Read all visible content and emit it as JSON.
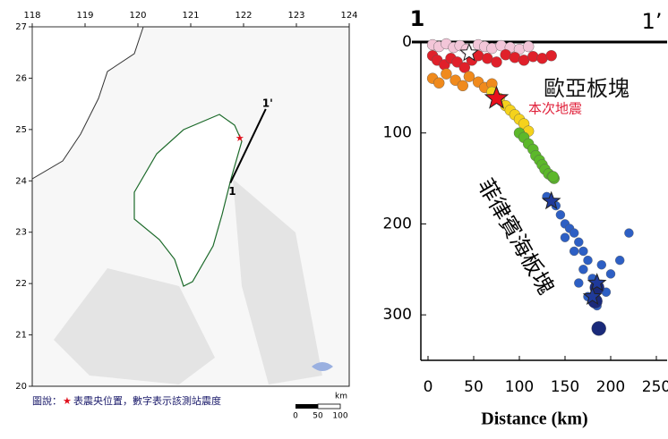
{
  "map": {
    "lon_ticks": [
      118,
      119,
      120,
      121,
      122,
      123,
      124
    ],
    "lat_ticks": [
      20,
      21,
      22,
      23,
      24,
      25,
      26,
      27
    ],
    "lonlim": [
      118,
      124
    ],
    "latlim": [
      20,
      27
    ],
    "epicenter": {
      "lon": 121.93,
      "lat": 24.82,
      "symbol": "★"
    },
    "profile": {
      "start": {
        "lon": 121.75,
        "lat": 23.96,
        "label": "1"
      },
      "end": {
        "lon": 122.42,
        "lat": 25.4,
        "label": "1'"
      }
    },
    "caption": {
      "prefix": "圖說：",
      "star": "★",
      "text": "表震央位置，數字表示該測站震度"
    },
    "scale": {
      "unit": "km",
      "labels": [
        "0",
        "50",
        "100"
      ]
    }
  },
  "chart_data": {
    "type": "scatter",
    "xlabel": "Distance (km)",
    "xlim": [
      0,
      250
    ],
    "ylim": [
      0,
      350
    ],
    "xticks": [
      0,
      50,
      100,
      150,
      200,
      250
    ],
    "yticks": [
      0,
      100,
      200,
      300
    ],
    "y_inverted": true,
    "annotations": {
      "left_end": "1",
      "right_end": "1’",
      "upper_plate": "歐亞板塊",
      "event": "本次地震",
      "lower_plate": "菲律賓海板塊"
    },
    "series": [
      {
        "color": "#f3c6d8",
        "size": 6,
        "x": [
          5,
          12,
          20,
          28,
          35,
          42,
          55,
          62,
          70,
          80,
          90,
          100,
          110
        ],
        "y": [
          3,
          5,
          2,
          6,
          4,
          8,
          3,
          5,
          7,
          4,
          6,
          8,
          5
        ]
      },
      {
        "color": "#e0202a",
        "size": 6,
        "x": [
          5,
          10,
          18,
          25,
          32,
          40,
          48,
          55,
          65,
          75,
          85,
          95,
          105,
          115,
          125,
          135
        ],
        "y": [
          15,
          20,
          25,
          18,
          22,
          28,
          20,
          15,
          18,
          22,
          14,
          17,
          20,
          16,
          18,
          15
        ]
      },
      {
        "color": "#f08a1c",
        "size": 6,
        "x": [
          5,
          12,
          20,
          30,
          38,
          45,
          55,
          62,
          70
        ],
        "y": [
          40,
          45,
          35,
          42,
          48,
          38,
          44,
          50,
          46
        ]
      },
      {
        "color": "#f5d21c",
        "size": 6,
        "x": [
          70,
          78,
          85,
          90,
          95,
          100,
          105,
          110
        ],
        "y": [
          55,
          62,
          70,
          75,
          80,
          85,
          90,
          98
        ]
      },
      {
        "color": "#5cb82a",
        "size": 6,
        "x": [
          100,
          105,
          110,
          115,
          118,
          122,
          125,
          128,
          132,
          136,
          138,
          137
        ],
        "y": [
          100,
          105,
          112,
          118,
          125,
          130,
          135,
          140,
          145,
          148,
          150,
          148
        ]
      },
      {
        "color": "#2d5fc4",
        "size": 5,
        "x": [
          130,
          140,
          145,
          150,
          155,
          160,
          165,
          170,
          175,
          150,
          160,
          170,
          180,
          185,
          190,
          200,
          210,
          175,
          165,
          185,
          195,
          220
        ],
        "y": [
          170,
          180,
          190,
          200,
          205,
          210,
          220,
          230,
          240,
          215,
          230,
          250,
          260,
          270,
          245,
          255,
          240,
          280,
          265,
          290,
          275,
          210
        ]
      },
      {
        "color": "#1a2a7a",
        "size": 8,
        "x": [
          187,
          183,
          185
        ],
        "y": [
          315,
          285,
          270
        ]
      }
    ],
    "stars": {
      "x": [
        45,
        75,
        135,
        185,
        180
      ],
      "y": [
        12,
        62,
        175,
        265,
        280
      ],
      "colors": [
        "#ffffff",
        "#e8101c",
        "#1f3a9a",
        "#1f3a9a",
        "#1f3a9a"
      ]
    }
  }
}
